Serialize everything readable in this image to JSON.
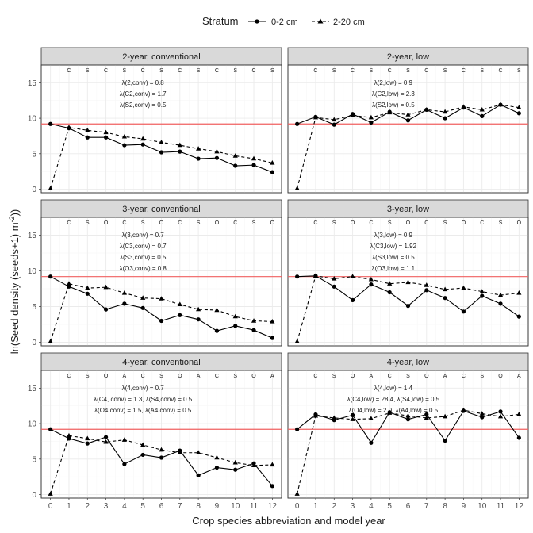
{
  "chart_data": {
    "type": "line",
    "xlabel": "Crop species abbreviation and model year",
    "ylabel": "ln(Seed density (seeds+1) m^-2))",
    "ylim": [
      -0.5,
      17.5
    ],
    "xlim": [
      -0.5,
      12.5
    ],
    "yticks": [
      0,
      5,
      10,
      15
    ],
    "xticks": [
      0,
      1,
      2,
      3,
      4,
      5,
      6,
      7,
      8,
      9,
      10,
      11,
      12
    ],
    "reference_line_y": 9.2,
    "reference_line_color": "#f06060",
    "legend": {
      "title": "Stratum",
      "position": "top",
      "entries": [
        {
          "label": "0-2 cm",
          "style": "solid-circle"
        },
        {
          "label": "2-20 cm",
          "style": "dashed-triangle"
        }
      ]
    },
    "panels": [
      {
        "title": "2-year, conventional",
        "crops": [
          "C",
          "S",
          "C",
          "S",
          "C",
          "S",
          "C",
          "S",
          "C",
          "S",
          "C",
          "S"
        ],
        "annotations": [
          "λ(2,conv) = 0.8",
          "λ(C2,conv) = 1.7",
          "λ(S2,conv) = 0.5"
        ],
        "series": [
          {
            "name": "0-2 cm",
            "x": [
              0,
              1,
              2,
              3,
              4,
              5,
              6,
              7,
              8,
              9,
              10,
              11,
              12
            ],
            "values": [
              9.2,
              8.6,
              7.3,
              7.3,
              6.2,
              6.3,
              5.2,
              5.3,
              4.3,
              4.4,
              3.3,
              3.4,
              2.4
            ]
          },
          {
            "name": "2-20 cm",
            "x": [
              0,
              1,
              2,
              3,
              4,
              5,
              6,
              7,
              8,
              9,
              10,
              11,
              12
            ],
            "values": [
              0.1,
              8.7,
              8.3,
              8.0,
              7.4,
              7.1,
              6.6,
              6.2,
              5.7,
              5.3,
              4.7,
              4.3,
              3.7
            ]
          }
        ]
      },
      {
        "title": "2-year, low",
        "crops": [
          "C",
          "S",
          "C",
          "S",
          "C",
          "S",
          "C",
          "S",
          "C",
          "S",
          "C",
          "S"
        ],
        "annotations": [
          "λ(2,low) = 0.9",
          "λ(C2,low) = 2.3",
          "λ(S2,low) = 0.5"
        ],
        "series": [
          {
            "name": "0-2 cm",
            "x": [
              0,
              1,
              2,
              3,
              4,
              5,
              6,
              7,
              8,
              9,
              10,
              11,
              12
            ],
            "values": [
              9.2,
              10.2,
              9.1,
              10.6,
              9.4,
              10.9,
              9.7,
              11.2,
              10.0,
              11.5,
              10.3,
              11.9,
              10.7
            ]
          },
          {
            "name": "2-20 cm",
            "x": [
              0,
              1,
              2,
              3,
              4,
              5,
              6,
              7,
              8,
              9,
              10,
              11,
              12
            ],
            "values": [
              0.1,
              10.1,
              9.8,
              10.4,
              10.1,
              10.8,
              10.5,
              11.2,
              10.9,
              11.6,
              11.2,
              11.9,
              11.5
            ]
          }
        ]
      },
      {
        "title": "3-year, conventional",
        "crops": [
          "C",
          "S",
          "O",
          "C",
          "S",
          "O",
          "C",
          "S",
          "O",
          "C",
          "S",
          "O"
        ],
        "annotations": [
          "λ(3,conv) = 0.7",
          "λ(C3,conv) = 0.7",
          "λ(S3,conv) = 0.5",
          "λ(O3,conv) = 0.8"
        ],
        "series": [
          {
            "name": "0-2 cm",
            "x": [
              0,
              1,
              2,
              3,
              4,
              5,
              6,
              7,
              8,
              9,
              10,
              11,
              12
            ],
            "values": [
              9.2,
              7.8,
              6.8,
              4.6,
              5.4,
              4.8,
              3.0,
              3.8,
              3.2,
              1.6,
              2.3,
              1.7,
              0.6
            ]
          },
          {
            "name": "2-20 cm",
            "x": [
              0,
              1,
              2,
              3,
              4,
              5,
              6,
              7,
              8,
              9,
              10,
              11,
              12
            ],
            "values": [
              0.1,
              8.2,
              7.6,
              7.7,
              6.9,
              6.2,
              6.1,
              5.3,
              4.6,
              4.5,
              3.6,
              3.0,
              2.9
            ]
          }
        ]
      },
      {
        "title": "3-year, low",
        "crops": [
          "C",
          "S",
          "O",
          "C",
          "S",
          "O",
          "C",
          "S",
          "O",
          "C",
          "S",
          "O"
        ],
        "annotations": [
          "λ(3,low) = 0.9",
          "λ(C3,low) = 1.92",
          "λ(S3,low) = 0.5",
          "λ(O3,low) = 1.1"
        ],
        "series": [
          {
            "name": "0-2 cm",
            "x": [
              0,
              1,
              2,
              3,
              4,
              5,
              6,
              7,
              8,
              9,
              10,
              11,
              12
            ],
            "values": [
              9.2,
              9.3,
              7.8,
              5.9,
              8.1,
              7.0,
              5.1,
              7.3,
              6.2,
              4.3,
              6.5,
              5.4,
              3.6
            ]
          },
          {
            "name": "2-20 cm",
            "x": [
              0,
              1,
              2,
              3,
              4,
              5,
              6,
              7,
              8,
              9,
              10,
              11,
              12
            ],
            "values": [
              0.1,
              9.3,
              8.9,
              9.2,
              8.8,
              8.2,
              8.4,
              8.0,
              7.4,
              7.6,
              7.1,
              6.6,
              6.9
            ]
          }
        ]
      },
      {
        "title": "4-year, conventional",
        "crops": [
          "C",
          "S",
          "O",
          "A",
          "C",
          "S",
          "O",
          "A",
          "C",
          "S",
          "O",
          "A"
        ],
        "annotations": [
          "λ(4,conv) = 0.7",
          "λ(C4, conv) = 1.3,  λ(S4,conv) = 0.5",
          "λ(O4,conv) = 1.5,  λ(A4,conv) = 0.5"
        ],
        "series": [
          {
            "name": "0-2 cm",
            "x": [
              0,
              1,
              2,
              3,
              4,
              5,
              6,
              7,
              8,
              9,
              10,
              11,
              12
            ],
            "values": [
              9.2,
              7.9,
              7.2,
              8.1,
              4.3,
              5.6,
              5.2,
              6.2,
              2.7,
              3.8,
              3.5,
              4.4,
              1.2
            ]
          },
          {
            "name": "2-20 cm",
            "x": [
              0,
              1,
              2,
              3,
              4,
              5,
              6,
              7,
              8,
              9,
              10,
              11,
              12
            ],
            "values": [
              0.1,
              8.3,
              7.9,
              7.4,
              7.7,
              7.0,
              6.3,
              5.9,
              5.9,
              5.2,
              4.5,
              4.1,
              4.2
            ]
          }
        ]
      },
      {
        "title": "4-year, low",
        "crops": [
          "C",
          "S",
          "O",
          "A",
          "C",
          "S",
          "O",
          "A",
          "C",
          "S",
          "O",
          "A"
        ],
        "annotations": [
          "λ(4,low) = 1.4",
          "λ(C4,low) = 28.4, λ(S4,low) = 0.5",
          "λ(O4,low) = 2.0, λ(A4,low) = 0.5"
        ],
        "series": [
          {
            "name": "0-2 cm",
            "x": [
              0,
              1,
              2,
              3,
              4,
              5,
              6,
              7,
              8,
              9,
              10,
              11,
              12
            ],
            "values": [
              9.2,
              11.3,
              10.5,
              11.2,
              7.3,
              11.6,
              10.6,
              11.3,
              7.6,
              11.8,
              10.9,
              11.7,
              8.0
            ]
          },
          {
            "name": "2-20 cm",
            "x": [
              0,
              1,
              2,
              3,
              4,
              5,
              6,
              7,
              8,
              9,
              10,
              11,
              12
            ],
            "values": [
              0.1,
              11.1,
              10.8,
              10.6,
              10.7,
              11.5,
              11.1,
              10.8,
              11.0,
              11.9,
              11.4,
              11.0,
              11.3
            ]
          }
        ]
      }
    ]
  }
}
